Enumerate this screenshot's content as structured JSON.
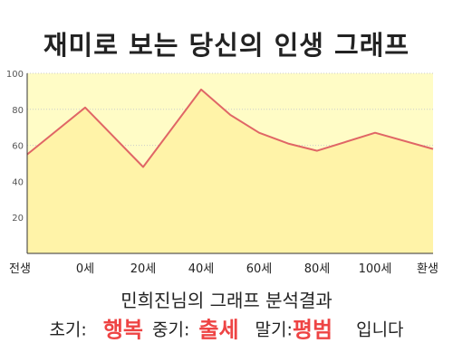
{
  "header": {
    "title": "재미로 보는 당신의 인생 그래프"
  },
  "chart_data": {
    "type": "area",
    "categories": [
      "전생",
      "0세",
      "20세",
      "40세",
      "60세",
      "80세",
      "100세",
      "환생"
    ],
    "series": [
      {
        "x": [
          "전생",
          "0세",
          "20세",
          "40세",
          "50세",
          "60세",
          "70세",
          "80세",
          "100세",
          "환생"
        ],
        "values": [
          55,
          81,
          48,
          91,
          77,
          67,
          61,
          57,
          67,
          58
        ]
      }
    ],
    "ylim": [
      0,
      100
    ],
    "yticks": [
      20,
      40,
      60,
      80,
      100
    ],
    "grid": true,
    "colors": {
      "fill": "#fffcc6",
      "line": "#e06666",
      "grid": "#cccccc"
    }
  },
  "result": {
    "subtitle": "민희진님의 그래프 분석결과",
    "early_label": "초기:",
    "early_value": "행복",
    "middle_label": "중기:",
    "middle_value": "출세",
    "late_label": "말기:",
    "late_value": "평범",
    "suffix": "입니다"
  }
}
